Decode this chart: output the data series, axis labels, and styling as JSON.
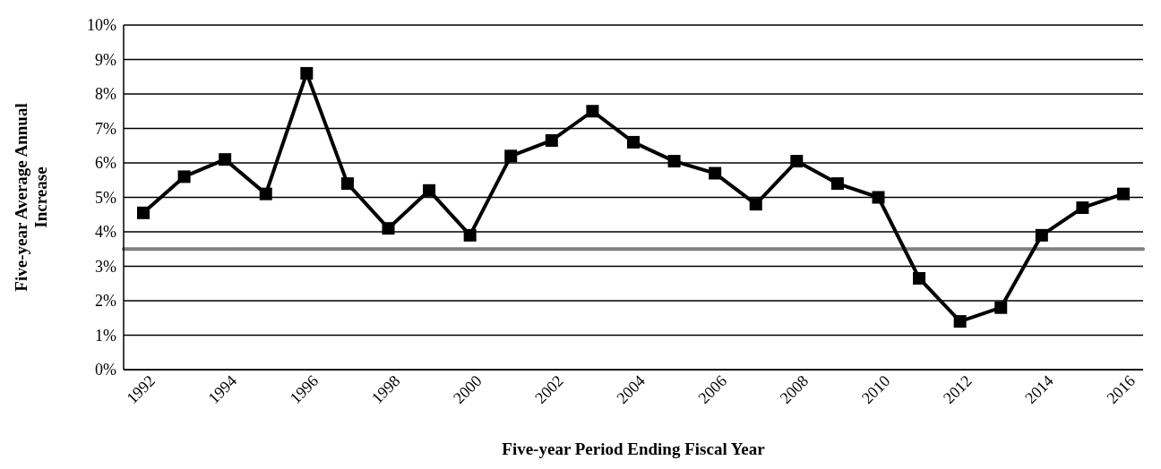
{
  "chart_data": {
    "type": "line",
    "xlabel": "Five-year Period Ending Fiscal Year",
    "ylabel": "Five-year Average Annual Increase",
    "categories": [
      "1992",
      null,
      "1994",
      null,
      "1996",
      null,
      "1998",
      null,
      "2000",
      null,
      "2002",
      null,
      "2004",
      null,
      "2006",
      null,
      "2008",
      null,
      "2010",
      null,
      "2012",
      null,
      "2014",
      null,
      "2016"
    ],
    "series": [
      {
        "color": "#000000",
        "values": [
          4.55,
          5.6,
          6.1,
          5.1,
          8.6,
          5.4,
          4.1,
          5.2,
          3.9,
          6.2,
          6.65,
          7.5,
          6.6,
          6.05,
          5.7,
          4.8,
          6.05,
          5.4,
          5.0,
          2.65,
          1.4,
          1.8,
          3.9,
          4.7,
          5.1
        ]
      }
    ],
    "ylim": [
      0,
      10
    ],
    "yticks": [
      {
        "value": 0,
        "label": "0%"
      },
      {
        "value": 1,
        "label": "1%"
      },
      {
        "value": 2,
        "label": "2%"
      },
      {
        "value": 3,
        "label": "3%"
      },
      {
        "value": 4,
        "label": "4%"
      },
      {
        "value": 5,
        "label": "5%"
      },
      {
        "value": 6,
        "label": "6%"
      },
      {
        "value": 7,
        "label": "7%"
      },
      {
        "value": 8,
        "label": "8%"
      },
      {
        "value": 9,
        "label": "9%"
      },
      {
        "value": 10,
        "label": "10%"
      }
    ],
    "ref_lines": [
      {
        "axis": "y",
        "value": 3.5,
        "color": "#808080"
      }
    ],
    "grid": "y",
    "legend": false,
    "marker": "square",
    "line_style": "solid"
  }
}
